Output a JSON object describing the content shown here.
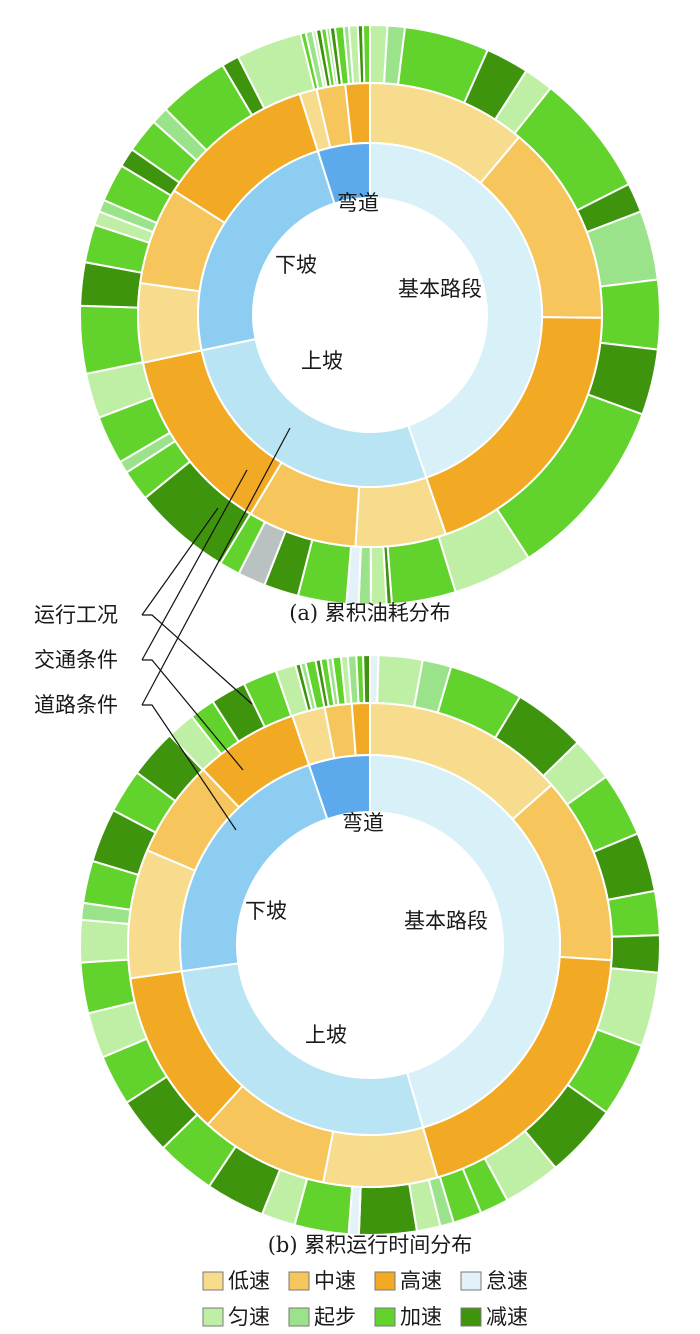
{
  "chart_data": {
    "type": "sunburst",
    "rings": [
      "道路条件",
      "交通条件",
      "运行工况"
    ],
    "legend": {
      "placement": "bottom",
      "rows": [
        [
          "低速",
          "中速",
          "高速",
          "怠速"
        ],
        [
          "匀速",
          "起步",
          "加速",
          "减速"
        ]
      ],
      "items": [
        {
          "name": "低速",
          "color": "#f7dc8e"
        },
        {
          "name": "中速",
          "color": "#f6c65c"
        },
        {
          "name": "高速",
          "color": "#f2a923"
        },
        {
          "name": "怠速",
          "color": "#e3f1f8"
        },
        {
          "name": "匀速",
          "color": "#bfefa4"
        },
        {
          "name": "起步",
          "color": "#9be38a"
        },
        {
          "name": "加速",
          "color": "#62d22c"
        },
        {
          "name": "减速",
          "color": "#3f940d"
        }
      ]
    },
    "road_colors": {
      "基本路段": "#d8f0f8",
      "上坡": "#b9e4f3",
      "下坡": "#8dcdf2",
      "弯道": "#5ca9ec"
    },
    "ring_labels": {
      "operation": "运行工况",
      "traffic": "交通条件",
      "road": "道路条件"
    },
    "charts": [
      {
        "caption": "(a) 累积油耗分布",
        "road": [
          {
            "name": "基本路段",
            "value": 44.7,
            "show_label": true
          },
          {
            "name": "上坡",
            "value": 27.0,
            "show_label": true
          },
          {
            "name": "下坡",
            "value": 23.4,
            "show_label": true
          },
          {
            "name": "弯道",
            "value": 4.9,
            "show_label": true
          }
        ],
        "traffic": [
          {
            "name": "低速",
            "value": 11.1
          },
          {
            "name": "中速",
            "value": 14.1
          },
          {
            "name": "高速",
            "value": 19.5
          },
          {
            "name": "低速",
            "value": 6.3
          },
          {
            "name": "中速",
            "value": 7.6
          },
          {
            "name": "高速",
            "value": 13.1
          },
          {
            "name": "低速",
            "value": 5.5
          },
          {
            "name": "中速",
            "value": 6.8
          },
          {
            "name": "高速",
            "value": 11.1
          },
          {
            "name": "低速",
            "value": 1.2
          },
          {
            "name": "中速",
            "value": 2.0
          },
          {
            "name": "高速",
            "value": 1.7
          }
        ],
        "operation": [
          {
            "name": "匀速",
            "value": 1.0
          },
          {
            "name": "起步",
            "value": 1.0
          },
          {
            "name": "加速",
            "value": 4.9
          },
          {
            "name": "减速",
            "value": 2.5
          },
          {
            "name": "匀速",
            "value": 1.7
          },
          {
            "name": "加速",
            "value": 7.1
          },
          {
            "name": "减速",
            "value": 1.7
          },
          {
            "name": "起步",
            "value": 4.0
          },
          {
            "name": "加速",
            "value": 4.0
          },
          {
            "name": "减速",
            "value": 3.8
          },
          {
            "name": "加速",
            "value": 10.6
          },
          {
            "name": "匀速",
            "value": 4.6
          },
          {
            "name": "加速",
            "value": 3.7
          },
          {
            "name": "减速",
            "value": 0.3
          },
          {
            "name": "匀速",
            "value": 0.9
          },
          {
            "name": "起步",
            "value": 0.7
          },
          {
            "name": "怠速",
            "value": 0.7
          },
          {
            "name": "加速",
            "value": 2.8
          },
          {
            "name": "减速",
            "value": 2.0
          },
          {
            "name": "灰色",
            "value": 1.6,
            "color": "#b9c2c0"
          },
          {
            "name": "加速",
            "value": 1.2
          },
          {
            "name": "减速",
            "value": 5.7
          },
          {
            "name": "加速",
            "value": 1.8
          },
          {
            "name": "起步",
            "value": 0.7
          },
          {
            "name": "加速",
            "value": 2.8
          },
          {
            "name": "匀速",
            "value": 2.6
          },
          {
            "name": "加速",
            "value": 3.9
          },
          {
            "name": "减速",
            "value": 2.5
          },
          {
            "name": "加速",
            "value": 2.2
          },
          {
            "name": "匀速",
            "value": 0.8
          },
          {
            "name": "起步",
            "value": 0.7
          },
          {
            "name": "加速",
            "value": 2.2
          },
          {
            "name": "减速",
            "value": 1.1
          },
          {
            "name": "加速",
            "value": 2.0
          },
          {
            "name": "起步",
            "value": 1.0
          },
          {
            "name": "加速",
            "value": 4.1
          },
          {
            "name": "减速",
            "value": 1.0
          },
          {
            "name": "匀速",
            "value": 3.8
          },
          {
            "name": "加速",
            "value": 0.3
          },
          {
            "name": "起步",
            "value": 0.4
          },
          {
            "name": "匀速",
            "value": 0.2
          },
          {
            "name": "减速",
            "value": 0.3
          },
          {
            "name": "加速",
            "value": 0.3
          },
          {
            "name": "起步",
            "value": 0.2
          },
          {
            "name": "减速",
            "value": 0.3
          },
          {
            "name": "加速",
            "value": 0.5
          },
          {
            "name": "起步",
            "value": 0.3
          },
          {
            "name": "匀速",
            "value": 0.5
          },
          {
            "name": "减速",
            "value": 0.3
          },
          {
            "name": "加速",
            "value": 0.4
          }
        ]
      },
      {
        "caption": "(b) 累积运行时间分布",
        "road": [
          {
            "name": "基本路段",
            "value": 45.5,
            "show_label": true
          },
          {
            "name": "上坡",
            "value": 27.3,
            "show_label": true
          },
          {
            "name": "下坡",
            "value": 22.0,
            "show_label": true
          },
          {
            "name": "弯道",
            "value": 5.2,
            "show_label": true
          }
        ],
        "traffic": [
          {
            "name": "低速",
            "value": 13.5
          },
          {
            "name": "中速",
            "value": 12.5
          },
          {
            "name": "高速",
            "value": 19.5
          },
          {
            "name": "低速",
            "value": 7.6
          },
          {
            "name": "中速",
            "value": 8.6
          },
          {
            "name": "高速",
            "value": 11.1
          },
          {
            "name": "低速",
            "value": 8.6
          },
          {
            "name": "中速",
            "value": 6.5
          },
          {
            "name": "高速",
            "value": 6.9
          },
          {
            "name": "低速",
            "value": 2.2
          },
          {
            "name": "中速",
            "value": 1.8
          },
          {
            "name": "高速",
            "value": 1.2
          }
        ],
        "operation": [
          {
            "name": "怠速",
            "value": 0.5
          },
          {
            "name": "匀速",
            "value": 2.6
          },
          {
            "name": "起步",
            "value": 1.7
          },
          {
            "name": "加速",
            "value": 4.4
          },
          {
            "name": "减速",
            "value": 4.3
          },
          {
            "name": "匀速",
            "value": 2.6
          },
          {
            "name": "加速",
            "value": 3.8
          },
          {
            "name": "减速",
            "value": 3.5
          },
          {
            "name": "加速",
            "value": 2.6
          },
          {
            "name": "减速",
            "value": 2.2
          },
          {
            "name": "匀速",
            "value": 4.4
          },
          {
            "name": "加速",
            "value": 4.4
          },
          {
            "name": "减速",
            "value": 4.4
          },
          {
            "name": "匀速",
            "value": 3.4
          },
          {
            "name": "加速",
            "value": 1.7
          },
          {
            "name": "加速",
            "value": 1.7
          },
          {
            "name": "起步",
            "value": 0.8
          },
          {
            "name": "匀速",
            "value": 1.4
          },
          {
            "name": "减速",
            "value": 3.4
          },
          {
            "name": "怠速",
            "value": 0.6
          },
          {
            "name": "加速",
            "value": 3.2
          },
          {
            "name": "匀速",
            "value": 2.0
          },
          {
            "name": "减速",
            "value": 3.5
          },
          {
            "name": "加速",
            "value": 3.5
          },
          {
            "name": "减速",
            "value": 3.4
          },
          {
            "name": "加速",
            "value": 3.0
          },
          {
            "name": "匀速",
            "value": 2.7
          },
          {
            "name": "加速",
            "value": 3.0
          },
          {
            "name": "匀速",
            "value": 2.5
          },
          {
            "name": "起步",
            "value": 1.0
          },
          {
            "name": "加速",
            "value": 2.5
          },
          {
            "name": "减速",
            "value": 3.2
          },
          {
            "name": "加速",
            "value": 2.6
          },
          {
            "name": "减速",
            "value": 2.9
          },
          {
            "name": "匀速",
            "value": 1.7
          },
          {
            "name": "加速",
            "value": 1.5
          },
          {
            "name": "减速",
            "value": 2.1
          },
          {
            "name": "加速",
            "value": 2.0
          },
          {
            "name": "匀速",
            "value": 1.2
          },
          {
            "name": "减速",
            "value": 0.3
          },
          {
            "name": "起步",
            "value": 0.3
          },
          {
            "name": "加速",
            "value": 0.6
          },
          {
            "name": "减速",
            "value": 0.3
          },
          {
            "name": "加速",
            "value": 0.4
          },
          {
            "name": "起步",
            "value": 0.3
          },
          {
            "name": "加速",
            "value": 0.5
          },
          {
            "name": "匀速",
            "value": 0.4
          },
          {
            "name": "起步",
            "value": 0.5
          },
          {
            "name": "加速",
            "value": 0.4
          },
          {
            "name": "减速",
            "value": 0.4
          }
        ]
      }
    ]
  }
}
